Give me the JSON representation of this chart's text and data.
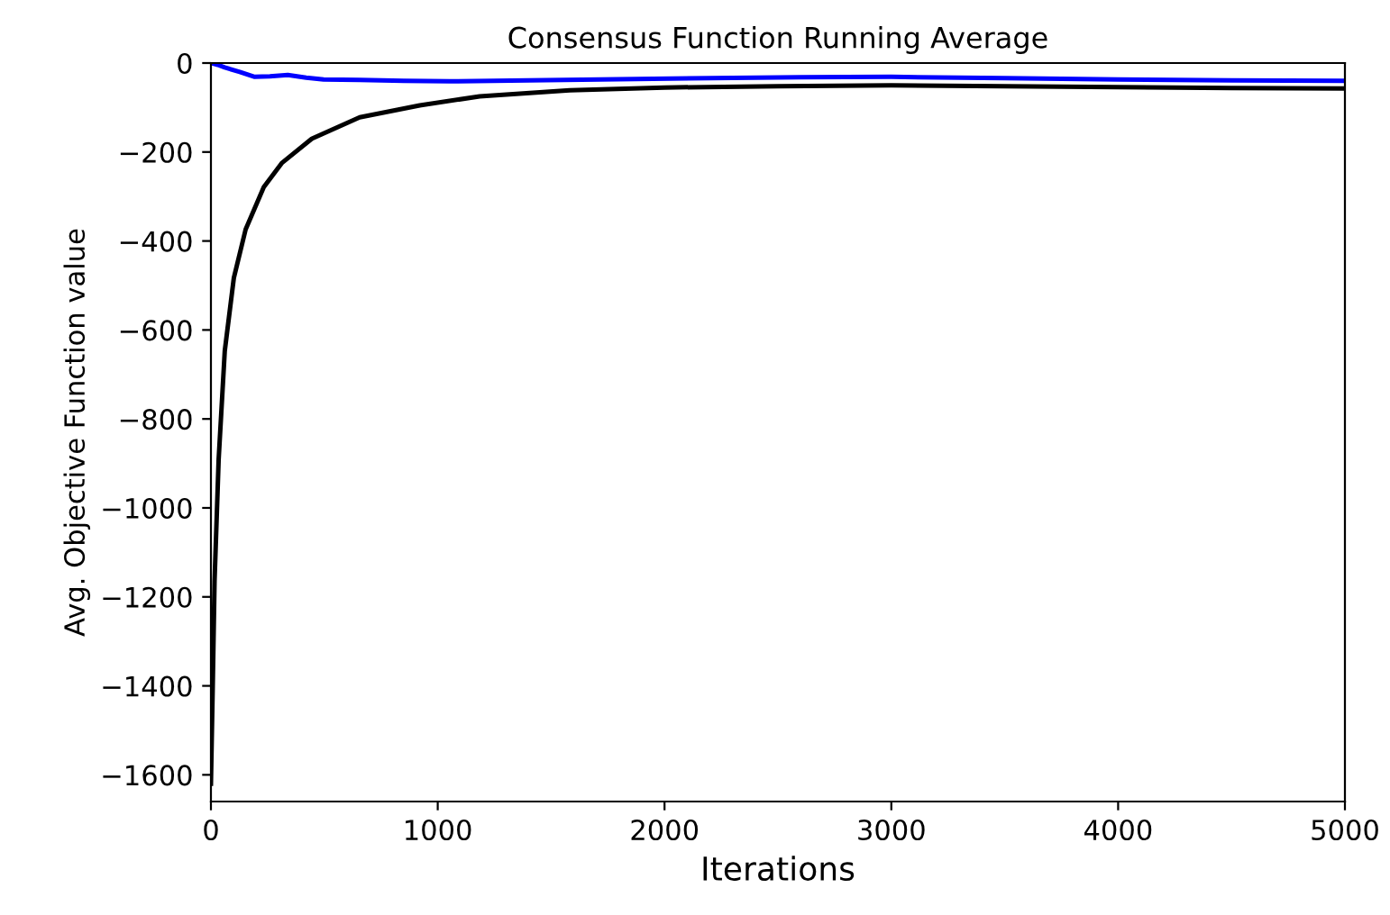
{
  "chart_data": {
    "type": "line",
    "title": "Consensus Function Running Average",
    "xlabel": "Iterations",
    "ylabel": "Avg. Objective Function value",
    "xlim": [
      0,
      5000
    ],
    "xticks": [
      0,
      1000,
      2000,
      3000,
      4000,
      5000
    ],
    "ylim": [
      -1660,
      0
    ],
    "yticks": [
      -1600,
      -1400,
      -1200,
      -1000,
      -800,
      -600,
      -400,
      -200,
      0
    ],
    "grid": false,
    "legend": false,
    "series": [
      {
        "color": "#0000ff",
        "x": [
          0,
          30,
          61,
          127,
          193,
          260,
          339,
          420,
          497,
          656,
          850,
          1053,
          1400,
          1715,
          2200,
          2600,
          3000,
          3500,
          4000,
          4500,
          5000
        ],
        "values": [
          0,
          -4,
          -10,
          -20,
          -31,
          -30,
          -27,
          -33,
          -37,
          -38,
          -40,
          -41,
          -39,
          -37,
          -34,
          -32,
          -31,
          -34,
          -37,
          -39,
          -40
        ]
      },
      {
        "color": "#000000",
        "x": [
          0,
          8,
          16,
          34,
          61,
          101,
          153,
          233,
          312,
          445,
          656,
          921,
          1185,
          1582,
          2000,
          2500,
          3000,
          3500,
          4000,
          4500,
          5000
        ],
        "values": [
          -1620,
          -1400,
          -1164,
          -891,
          -647,
          -483,
          -374,
          -279,
          -225,
          -170,
          -122,
          -95,
          -75,
          -61,
          -55,
          -52,
          -50,
          -52,
          -54,
          -56,
          -57
        ]
      }
    ]
  }
}
